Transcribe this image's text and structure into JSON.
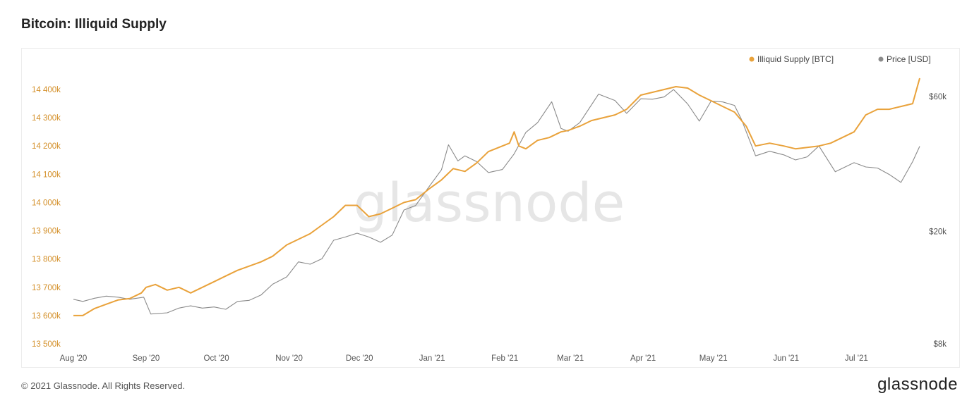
{
  "title": "Bitcoin: Illiquid Supply",
  "footer": {
    "copyright": "© 2021 Glassnode. All Rights Reserved.",
    "logo": "glassnode"
  },
  "watermark": "glassnode",
  "colors": {
    "illiquid": "#e9a23b",
    "price": "#8a8a8a",
    "left_axis_text": "#d4902a",
    "right_axis_text": "#555555"
  },
  "chart_data": {
    "type": "line",
    "title": "Bitcoin: Illiquid Supply",
    "x_ticks": [
      "Aug '20",
      "Sep '20",
      "Oct '20",
      "Nov '20",
      "Dec '20",
      "Jan '21",
      "Feb '21",
      "Mar '21",
      "Apr '21",
      "May '21",
      "Jun '21",
      "Jul '21"
    ],
    "x_range": [
      "2020-08-01",
      "2021-07-28"
    ],
    "y_left": {
      "ticks": [
        "13 500k",
        "13 600k",
        "13 700k",
        "13 800k",
        "13 900k",
        "14 000k",
        "14 100k",
        "14 200k",
        "14 300k",
        "14 400k"
      ],
      "range": [
        13500000,
        14400000
      ]
    },
    "y_right": {
      "scale": "log",
      "ticks": [
        "$8k",
        "$20k",
        "$60k"
      ],
      "tick_values": [
        8000,
        20000,
        60000
      ]
    },
    "legend_position": "top-right",
    "grid": false,
    "series": [
      {
        "name": "Illiquid Supply [BTC]",
        "axis": "left",
        "points": [
          [
            "2020-08-01",
            13600000
          ],
          [
            "2020-08-05",
            13600000
          ],
          [
            "2020-08-10",
            13625000
          ],
          [
            "2020-08-15",
            13640000
          ],
          [
            "2020-08-20",
            13655000
          ],
          [
            "2020-08-25",
            13660000
          ],
          [
            "2020-08-30",
            13680000
          ],
          [
            "2020-09-01",
            13700000
          ],
          [
            "2020-09-05",
            13710000
          ],
          [
            "2020-09-10",
            13690000
          ],
          [
            "2020-09-15",
            13700000
          ],
          [
            "2020-09-20",
            13680000
          ],
          [
            "2020-09-25",
            13700000
          ],
          [
            "2020-09-30",
            13720000
          ],
          [
            "2020-10-05",
            13740000
          ],
          [
            "2020-10-10",
            13760000
          ],
          [
            "2020-10-15",
            13775000
          ],
          [
            "2020-10-20",
            13790000
          ],
          [
            "2020-10-25",
            13810000
          ],
          [
            "2020-10-31",
            13850000
          ],
          [
            "2020-11-05",
            13870000
          ],
          [
            "2020-11-10",
            13890000
          ],
          [
            "2020-11-15",
            13920000
          ],
          [
            "2020-11-20",
            13950000
          ],
          [
            "2020-11-25",
            13990000
          ],
          [
            "2020-11-30",
            13990000
          ],
          [
            "2020-12-05",
            13950000
          ],
          [
            "2020-12-10",
            13960000
          ],
          [
            "2020-12-15",
            13980000
          ],
          [
            "2020-12-20",
            14000000
          ],
          [
            "2020-12-25",
            14010000
          ],
          [
            "2020-12-31",
            14050000
          ],
          [
            "2021-01-05",
            14080000
          ],
          [
            "2021-01-10",
            14120000
          ],
          [
            "2021-01-15",
            14110000
          ],
          [
            "2021-01-20",
            14140000
          ],
          [
            "2021-01-25",
            14180000
          ],
          [
            "2021-01-31",
            14200000
          ],
          [
            "2021-02-03",
            14210000
          ],
          [
            "2021-02-05",
            14250000
          ],
          [
            "2021-02-07",
            14200000
          ],
          [
            "2021-02-10",
            14190000
          ],
          [
            "2021-02-15",
            14220000
          ],
          [
            "2021-02-20",
            14230000
          ],
          [
            "2021-02-25",
            14250000
          ],
          [
            "2021-02-28",
            14255000
          ],
          [
            "2021-03-05",
            14270000
          ],
          [
            "2021-03-10",
            14290000
          ],
          [
            "2021-03-15",
            14300000
          ],
          [
            "2021-03-20",
            14310000
          ],
          [
            "2021-03-25",
            14330000
          ],
          [
            "2021-03-31",
            14380000
          ],
          [
            "2021-04-05",
            14390000
          ],
          [
            "2021-04-10",
            14400000
          ],
          [
            "2021-04-15",
            14410000
          ],
          [
            "2021-04-20",
            14405000
          ],
          [
            "2021-04-25",
            14380000
          ],
          [
            "2021-04-30",
            14360000
          ],
          [
            "2021-05-05",
            14340000
          ],
          [
            "2021-05-10",
            14320000
          ],
          [
            "2021-05-15",
            14270000
          ],
          [
            "2021-05-19",
            14200000
          ],
          [
            "2021-05-25",
            14210000
          ],
          [
            "2021-05-31",
            14200000
          ],
          [
            "2021-06-05",
            14190000
          ],
          [
            "2021-06-10",
            14195000
          ],
          [
            "2021-06-15",
            14200000
          ],
          [
            "2021-06-20",
            14210000
          ],
          [
            "2021-06-25",
            14230000
          ],
          [
            "2021-06-30",
            14250000
          ],
          [
            "2021-07-05",
            14310000
          ],
          [
            "2021-07-10",
            14330000
          ],
          [
            "2021-07-15",
            14330000
          ],
          [
            "2021-07-20",
            14340000
          ],
          [
            "2021-07-25",
            14350000
          ],
          [
            "2021-07-28",
            14440000
          ]
        ]
      },
      {
        "name": "Price [USD]",
        "axis": "right",
        "points": [
          [
            "2020-08-01",
            11500
          ],
          [
            "2020-08-05",
            11300
          ],
          [
            "2020-08-10",
            11600
          ],
          [
            "2020-08-15",
            11800
          ],
          [
            "2020-08-20",
            11700
          ],
          [
            "2020-08-25",
            11500
          ],
          [
            "2020-08-31",
            11700
          ],
          [
            "2020-09-03",
            10200
          ],
          [
            "2020-09-10",
            10300
          ],
          [
            "2020-09-15",
            10700
          ],
          [
            "2020-09-20",
            10900
          ],
          [
            "2020-09-25",
            10700
          ],
          [
            "2020-09-30",
            10800
          ],
          [
            "2020-10-05",
            10600
          ],
          [
            "2020-10-10",
            11300
          ],
          [
            "2020-10-15",
            11400
          ],
          [
            "2020-10-20",
            11900
          ],
          [
            "2020-10-25",
            13000
          ],
          [
            "2020-10-31",
            13800
          ],
          [
            "2020-11-05",
            15600
          ],
          [
            "2020-11-10",
            15300
          ],
          [
            "2020-11-15",
            16000
          ],
          [
            "2020-11-20",
            18600
          ],
          [
            "2020-11-25",
            19100
          ],
          [
            "2020-11-30",
            19700
          ],
          [
            "2020-12-05",
            19100
          ],
          [
            "2020-12-10",
            18300
          ],
          [
            "2020-12-15",
            19400
          ],
          [
            "2020-12-20",
            23800
          ],
          [
            "2020-12-25",
            24700
          ],
          [
            "2020-12-31",
            29000
          ],
          [
            "2021-01-05",
            33000
          ],
          [
            "2021-01-08",
            40500
          ],
          [
            "2021-01-12",
            35500
          ],
          [
            "2021-01-15",
            37000
          ],
          [
            "2021-01-20",
            35300
          ],
          [
            "2021-01-25",
            32300
          ],
          [
            "2021-01-31",
            33100
          ],
          [
            "2021-02-05",
            37600
          ],
          [
            "2021-02-10",
            44800
          ],
          [
            "2021-02-15",
            48500
          ],
          [
            "2021-02-21",
            57500
          ],
          [
            "2021-02-25",
            46300
          ],
          [
            "2021-02-28",
            45200
          ],
          [
            "2021-03-05",
            48500
          ],
          [
            "2021-03-13",
            61200
          ],
          [
            "2021-03-20",
            58100
          ],
          [
            "2021-03-25",
            52300
          ],
          [
            "2021-03-31",
            58900
          ],
          [
            "2021-04-05",
            58700
          ],
          [
            "2021-04-10",
            59800
          ],
          [
            "2021-04-14",
            63500
          ],
          [
            "2021-04-20",
            56500
          ],
          [
            "2021-04-25",
            49100
          ],
          [
            "2021-04-30",
            57800
          ],
          [
            "2021-05-05",
            57400
          ],
          [
            "2021-05-10",
            55800
          ],
          [
            "2021-05-13",
            49700
          ],
          [
            "2021-05-19",
            37000
          ],
          [
            "2021-05-25",
            38400
          ],
          [
            "2021-05-31",
            37300
          ],
          [
            "2021-06-05",
            35800
          ],
          [
            "2021-06-10",
            36700
          ],
          [
            "2021-06-15",
            40100
          ],
          [
            "2021-06-22",
            32500
          ],
          [
            "2021-06-30",
            35000
          ],
          [
            "2021-07-05",
            33800
          ],
          [
            "2021-07-10",
            33500
          ],
          [
            "2021-07-15",
            31800
          ],
          [
            "2021-07-20",
            29800
          ],
          [
            "2021-07-25",
            35300
          ],
          [
            "2021-07-28",
            40000
          ]
        ]
      }
    ]
  }
}
